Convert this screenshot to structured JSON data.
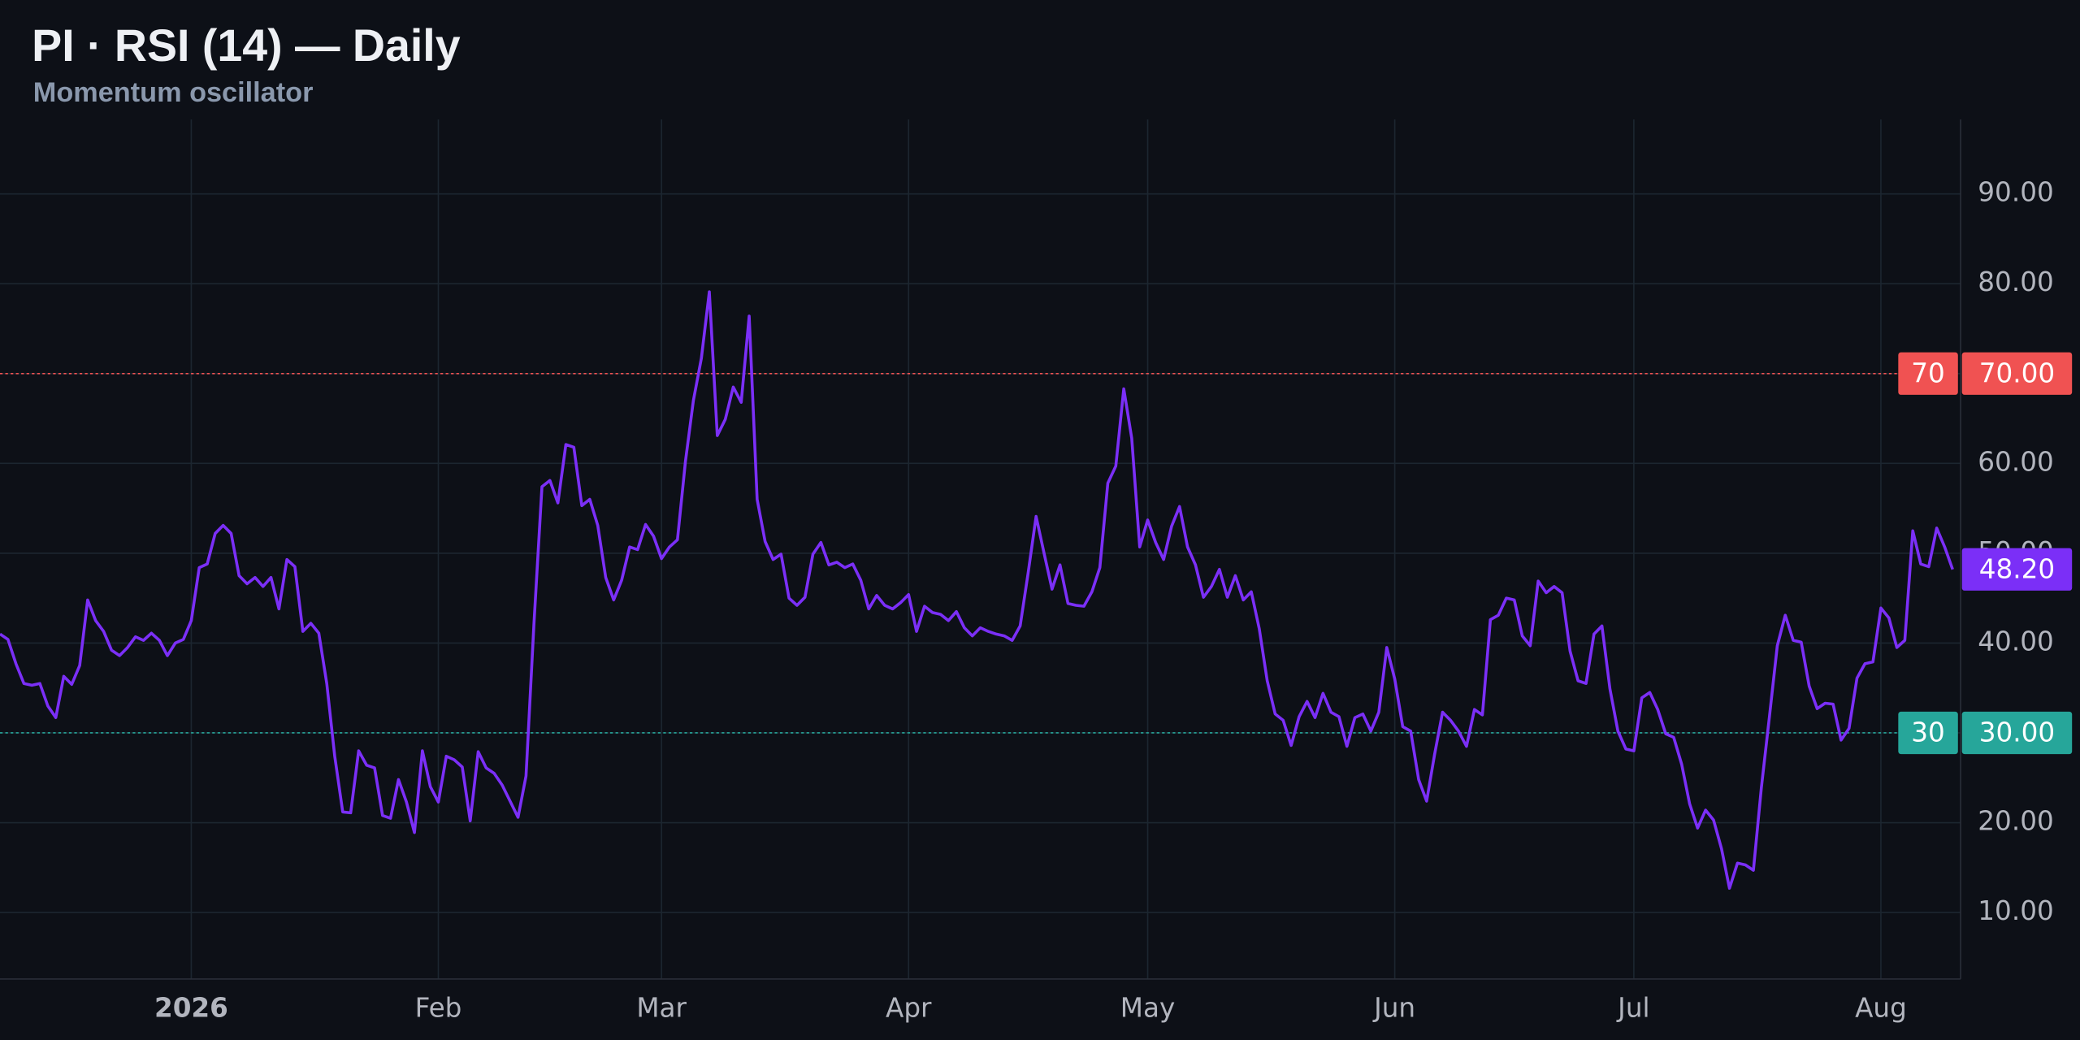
{
  "chart_data": {
    "type": "line",
    "title": "PI · RSI (14) — Daily",
    "subtitle": "Momentum oscillator",
    "series": [
      {
        "name": "RSI (14)",
        "color": "#7b2ff7",
        "values": [
          41,
          40.4,
          37.7,
          35.5,
          35.3,
          35.5,
          33,
          31.7,
          36.3,
          35.4,
          37.5,
          44.8,
          42.5,
          41.3,
          39.2,
          38.6,
          39.5,
          40.7,
          40.3,
          41.1,
          40.3,
          38.6,
          40,
          40.4,
          42.5,
          48.4,
          48.8,
          52.2,
          53.1,
          52.2,
          47.5,
          46.6,
          47.3,
          46.3,
          47.3,
          43.8,
          49.3,
          48.5,
          41.3,
          42.2,
          41.1,
          35.5,
          27.4,
          21.2,
          21.1,
          28,
          26.4,
          26.1,
          20.8,
          20.5,
          24.8,
          22.3,
          18.9,
          28,
          24,
          22.3,
          27.4,
          27,
          26.2,
          20.2,
          27.9,
          26.1,
          25.5,
          24.2,
          22.4,
          20.6,
          25.2,
          42.2,
          57.4,
          58.1,
          55.6,
          62.1,
          61.8,
          55.3,
          56,
          53.1,
          47.3,
          44.8,
          47,
          50.7,
          50.4,
          53.2,
          51.9,
          49.4,
          50.7,
          51.5,
          60.2,
          67,
          71.7,
          79.1,
          63.1,
          64.9,
          68.5,
          66.8,
          76.4,
          56,
          51.3,
          49.3,
          49.9,
          45,
          44.2,
          45.1,
          49.9,
          51.2,
          48.7,
          49,
          48.4,
          48.8,
          47,
          43.8,
          45.3,
          44.2,
          43.8,
          44.5,
          45.4,
          41.3,
          44.1,
          43.4,
          43.2,
          42.5,
          43.5,
          41.7,
          40.8,
          41.7,
          41.3,
          41,
          40.8,
          40.3,
          41.9,
          47.8,
          54.1,
          50,
          46,
          48.7,
          44.4,
          44.2,
          44.1,
          45.7,
          48.4,
          57.8,
          59.7,
          68.3,
          62.8,
          50.7,
          53.7,
          51.2,
          49.3,
          53,
          55.2,
          50.7,
          48.7,
          45.1,
          46.3,
          48.2,
          45.1,
          47.5,
          44.8,
          45.7,
          41.6,
          35.8,
          32.1,
          31.4,
          28.6,
          31.8,
          33.5,
          31.7,
          34.4,
          32.3,
          31.8,
          28.5,
          31.7,
          32.1,
          30.2,
          32.3,
          39.5,
          36,
          30.7,
          30.2,
          24.8,
          22.4,
          27.6,
          32.3,
          31.4,
          30.2,
          28.5,
          32.6,
          32,
          42.6,
          43.1,
          45,
          44.8,
          40.8,
          39.7,
          46.9,
          45.6,
          46.3,
          45.6,
          39.1,
          35.8,
          35.5,
          41,
          41.9,
          34.9,
          30.2,
          28.2,
          28,
          33.9,
          34.5,
          32.6,
          29.9,
          29.5,
          26.5,
          22.1,
          19.4,
          21.4,
          20.3,
          17.1,
          12.7,
          15.5,
          15.3,
          14.7,
          23.9,
          31.7,
          39.7,
          43.1,
          40.3,
          40.1,
          35.2,
          32.7,
          33.3,
          33.2,
          29.2,
          30.5,
          36.1,
          37.7,
          37.9,
          43.9,
          42.8,
          39.5,
          40.3,
          52.5,
          48.8,
          48.5,
          52.8,
          50.7,
          48.2
        ]
      }
    ],
    "last_value_label": "48.20",
    "xlim": [
      0,
      246
    ],
    "xticks": [
      {
        "value": 24,
        "label": "2026"
      },
      {
        "value": 55,
        "label": "Feb"
      },
      {
        "value": 83,
        "label": "Mar"
      },
      {
        "value": 114,
        "label": "Apr"
      },
      {
        "value": 144,
        "label": "May"
      },
      {
        "value": 175,
        "label": "Jun"
      },
      {
        "value": 205,
        "label": "Jul"
      },
      {
        "value": 236,
        "label": "Aug"
      }
    ],
    "ylim": [
      2.6,
      98.3
    ],
    "yticks": [
      {
        "value": 10,
        "label": "10.00"
      },
      {
        "value": 20,
        "label": "20.00"
      },
      {
        "value": 30,
        "label": "30.00"
      },
      {
        "value": 40,
        "label": "40.00"
      },
      {
        "value": 50,
        "label": "50.00"
      },
      {
        "value": 60,
        "label": "60.00"
      },
      {
        "value": 70,
        "label": "70.00"
      },
      {
        "value": 80,
        "label": "80.00"
      },
      {
        "value": 90,
        "label": "90.00"
      }
    ],
    "levels": [
      {
        "value": 70,
        "label": "70",
        "axis_label": "70.00",
        "color": "#f05252"
      },
      {
        "value": 30,
        "label": "30",
        "axis_label": "30.00",
        "color": "#26a69a"
      }
    ],
    "grid": true
  }
}
